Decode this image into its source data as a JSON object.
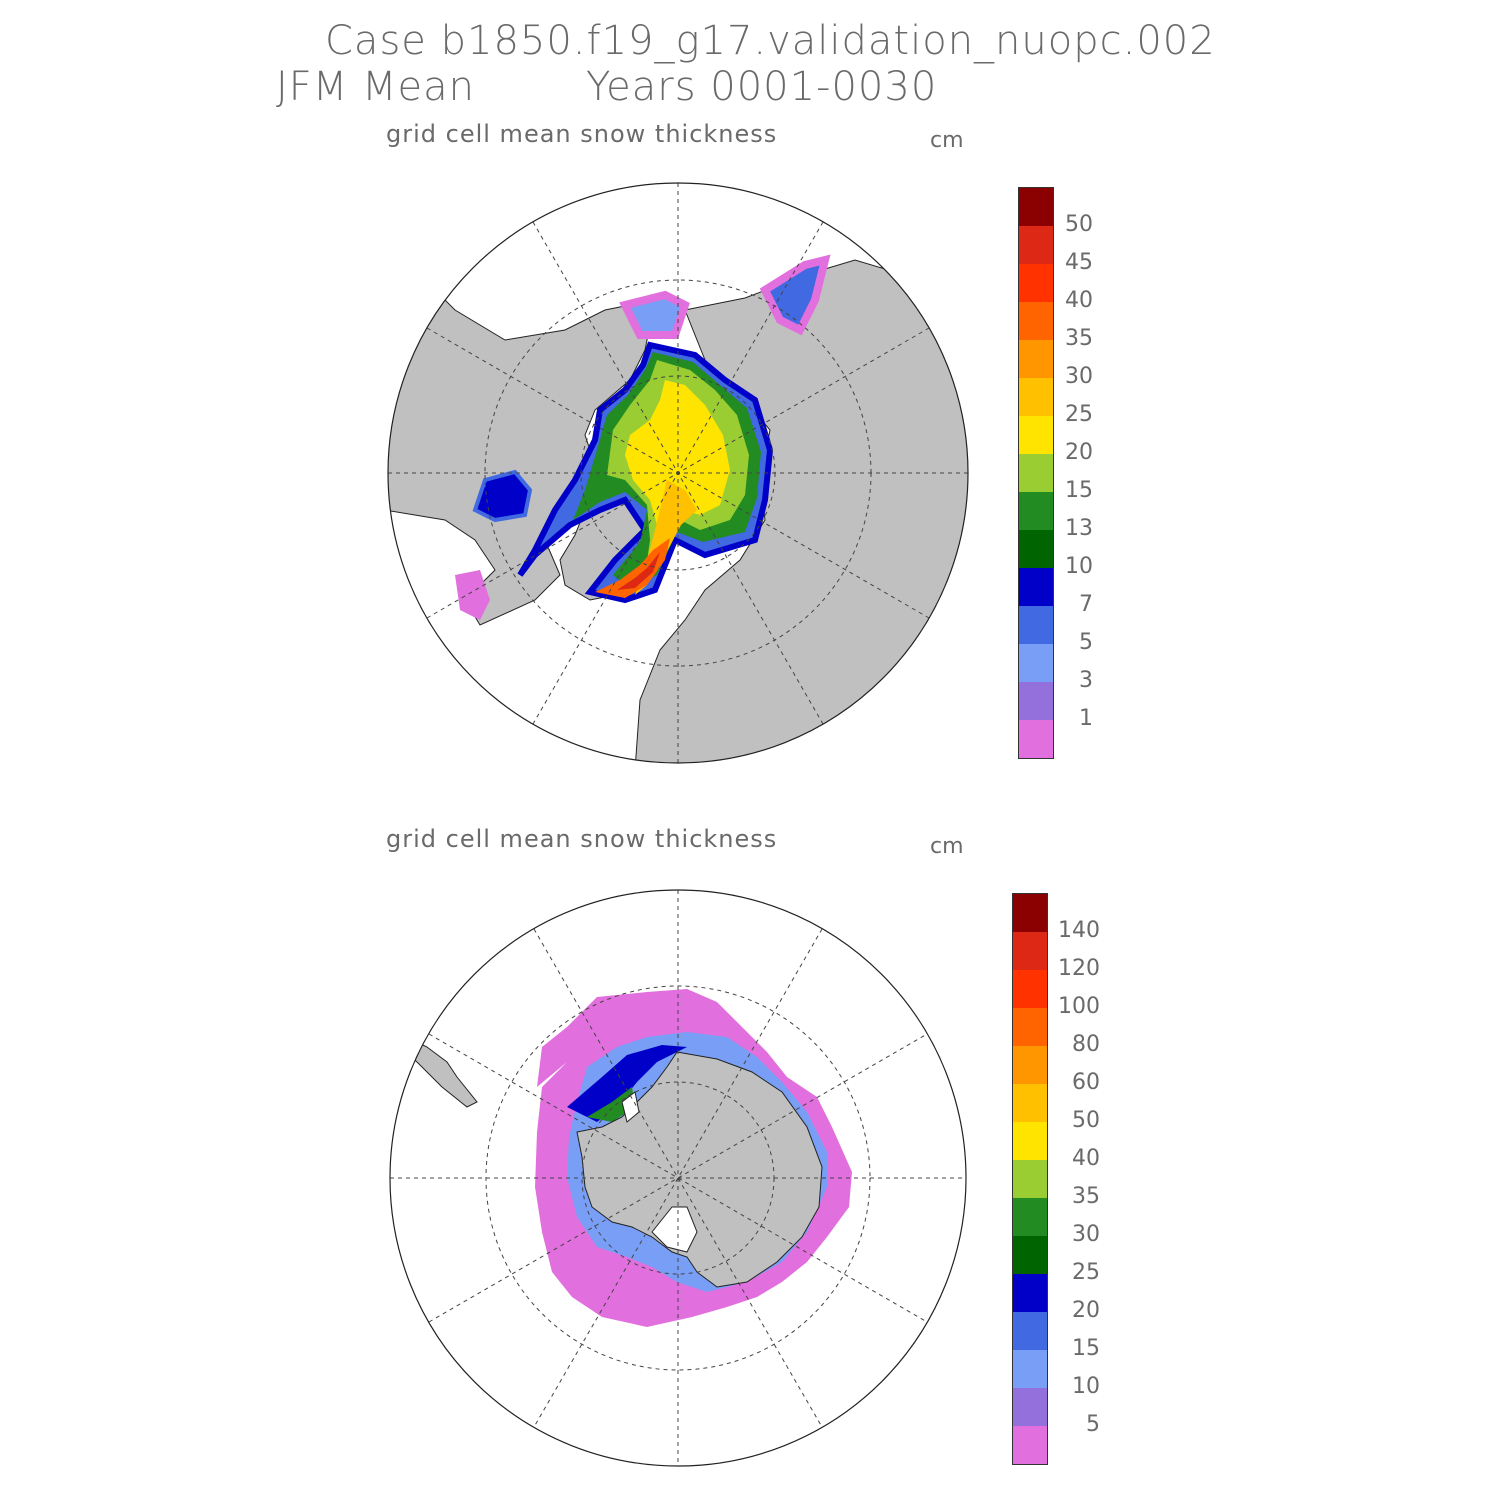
{
  "header": {
    "case_line": "Case b1850.f19_g17.validation_nuopc.002",
    "period": "JFM Mean",
    "years": "Years 0001-0030"
  },
  "panels": [
    {
      "hemisphere": "north",
      "subtitle": "grid cell mean snow thickness",
      "unit": "cm",
      "colorbar": {
        "colors_bottom_to_top": [
          "#e26fde",
          "#9370db",
          "#789ef5",
          "#4169e1",
          "#0000c8",
          "#006400",
          "#228b22",
          "#9acd32",
          "#ffe400",
          "#ffc000",
          "#ff9600",
          "#ff6400",
          "#ff3200",
          "#dc2814",
          "#8b0000"
        ],
        "tick_labels_bottom_to_top": [
          "1",
          "3",
          "5",
          "7",
          "10",
          "13",
          "15",
          "20",
          "25",
          "30",
          "35",
          "40",
          "45",
          "50"
        ]
      }
    },
    {
      "hemisphere": "south",
      "subtitle": "grid cell mean snow thickness",
      "unit": "cm",
      "colorbar": {
        "colors_bottom_to_top": [
          "#e26fde",
          "#9370db",
          "#789ef5",
          "#4169e1",
          "#0000c8",
          "#006400",
          "#228b22",
          "#9acd32",
          "#ffe400",
          "#ffc000",
          "#ff9600",
          "#ff6400",
          "#ff3200",
          "#dc2814",
          "#8b0000"
        ],
        "tick_labels_bottom_to_top": [
          "5",
          "10",
          "15",
          "20",
          "25",
          "30",
          "35",
          "40",
          "50",
          "60",
          "80",
          "100",
          "120",
          "140"
        ]
      }
    }
  ],
  "colors": {
    "land": "#c0c0c0",
    "ocean": "#ffffff",
    "grid": "#444444"
  }
}
